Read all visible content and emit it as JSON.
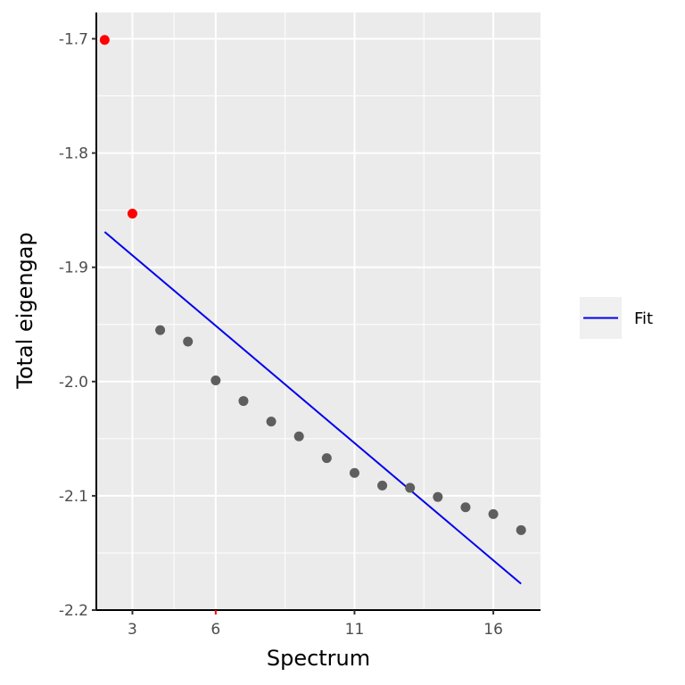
{
  "chart_data": {
    "type": "scatter",
    "title": "",
    "xlabel": "Spectrum",
    "ylabel": "Total eigengap",
    "xlim": [
      1.7,
      17.7
    ],
    "ylim": [
      -2.2,
      -1.677
    ],
    "x_ticks": [
      3,
      6,
      11,
      16
    ],
    "y_ticks": [
      -2.2,
      -2.1,
      -2.0,
      -1.9,
      -1.8,
      -1.7
    ],
    "x_tick_labels": [
      "3",
      "6",
      "11",
      "16"
    ],
    "y_tick_labels": [
      "-2.2",
      "-2.1",
      "-2.0",
      "-1.9",
      "-1.8",
      "-1.7"
    ],
    "highlighted_x_tick": 6,
    "grid": true,
    "points": [
      {
        "x": 2,
        "y": -1.701,
        "highlight": true
      },
      {
        "x": 3,
        "y": -1.853,
        "highlight": true
      },
      {
        "x": 4,
        "y": -1.955,
        "highlight": false
      },
      {
        "x": 5,
        "y": -1.965,
        "highlight": false
      },
      {
        "x": 6,
        "y": -1.999,
        "highlight": false
      },
      {
        "x": 7,
        "y": -2.017,
        "highlight": false
      },
      {
        "x": 8,
        "y": -2.035,
        "highlight": false
      },
      {
        "x": 9,
        "y": -2.048,
        "highlight": false
      },
      {
        "x": 10,
        "y": -2.067,
        "highlight": false
      },
      {
        "x": 11,
        "y": -2.08,
        "highlight": false
      },
      {
        "x": 12,
        "y": -2.091,
        "highlight": false
      },
      {
        "x": 13,
        "y": -2.093,
        "highlight": false
      },
      {
        "x": 14,
        "y": -2.101,
        "highlight": false
      },
      {
        "x": 15,
        "y": -2.11,
        "highlight": false
      },
      {
        "x": 16,
        "y": -2.116,
        "highlight": false
      },
      {
        "x": 17,
        "y": -2.13,
        "highlight": false
      }
    ],
    "fit_line": {
      "name": "Fit",
      "x": [
        2,
        17
      ],
      "y": [
        -1.869,
        -2.177
      ]
    },
    "legend": {
      "position": "right",
      "entries": [
        "Fit"
      ]
    },
    "colors": {
      "panel": "#ebebeb",
      "grid": "#ffffff",
      "point": "#5e5e5e",
      "highlight": "#ff0000",
      "fit": "#0000ee",
      "axis": "#000000",
      "legend_key": "#f0f0f0"
    }
  }
}
